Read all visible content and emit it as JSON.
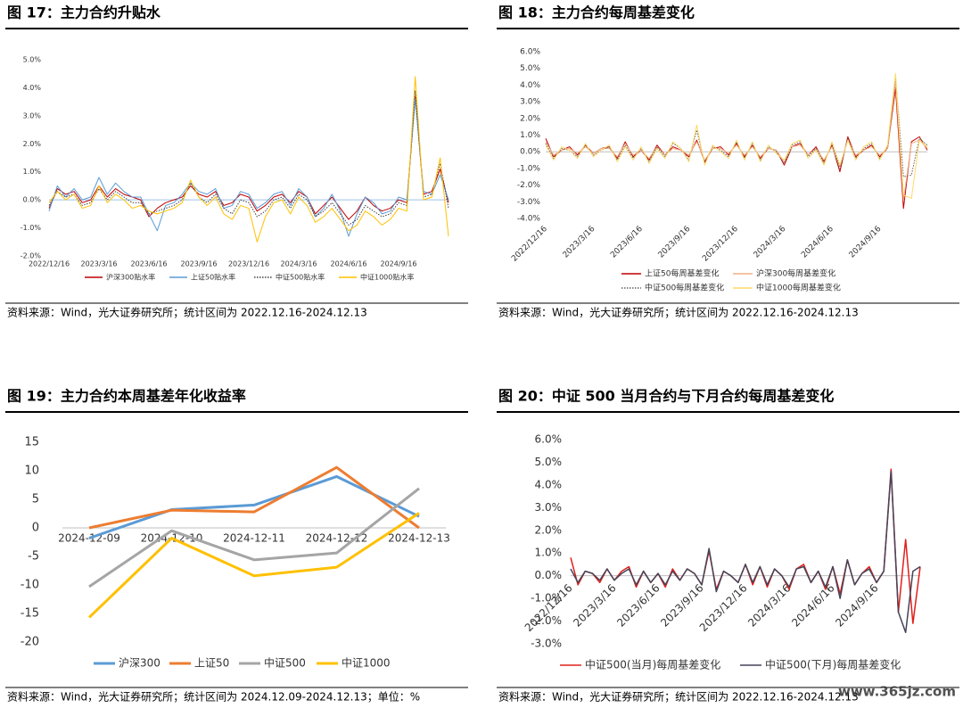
{
  "chart_data": [
    {
      "type": "line",
      "title": "图 17：主力合约升贴水",
      "source": "资料来源：Wind，光大证券研究所；统计区间为 2022.12.16-2024.12.13",
      "legend": "bottom",
      "grid": false,
      "categories": [
        "2022/12/16",
        null,
        null,
        null,
        null,
        null,
        "2023/3/16",
        null,
        null,
        null,
        null,
        null,
        "2023/6/16",
        null,
        null,
        null,
        null,
        null,
        "2023/9/16",
        null,
        null,
        null,
        null,
        null,
        "2023/12/16",
        null,
        null,
        null,
        null,
        null,
        "2024/3/16",
        null,
        null,
        null,
        null,
        null,
        "2024/6/16",
        null,
        null,
        null,
        null,
        null,
        "2024/9/16",
        null,
        null,
        null,
        null,
        null,
        null
      ],
      "ylim": [
        -2,
        5
      ],
      "yticks": [
        {
          "value": -2,
          "label": "-2.0%"
        },
        {
          "value": -1,
          "label": "-1.0%"
        },
        {
          "value": 0,
          "label": "0.0%"
        },
        {
          "value": 1,
          "label": "1.0%"
        },
        {
          "value": 2,
          "label": "2.0%"
        },
        {
          "value": 3,
          "label": "3.0%"
        },
        {
          "value": 4,
          "label": "4.0%"
        },
        {
          "value": 5,
          "label": "5.0%"
        }
      ],
      "series": [
        {
          "name": "沪深300贴水率",
          "color": "#c00000",
          "style": "solid",
          "values": [
            -0.3,
            0.4,
            0.2,
            0.3,
            -0.1,
            0,
            0.5,
            0.1,
            0.4,
            0.2,
            0.1,
            0,
            -0.6,
            -0.3,
            -0.1,
            0,
            0.1,
            0.5,
            0.2,
            0.1,
            0.3,
            -0.2,
            -0.1,
            0.2,
            0.1,
            -0.4,
            -0.2,
            0.1,
            0.2,
            -0.1,
            0.3,
            0.1,
            -0.5,
            -0.2,
            0.1,
            -0.3,
            -0.7,
            -0.4,
            0.1,
            -0.2,
            -0.4,
            -0.3,
            0,
            -0.1,
            3.7,
            0.2,
            0.3,
            1.1,
            -0.1
          ]
        },
        {
          "name": "上证50贴水率",
          "color": "#5b9bd5",
          "style": "solid",
          "values": [
            -0.4,
            0.5,
            0.1,
            0.4,
            0,
            0.1,
            0.8,
            0.2,
            0.6,
            0.3,
            0.1,
            0.1,
            -0.5,
            -1.1,
            -0.2,
            -0.1,
            0.2,
            0.6,
            0.3,
            0.2,
            0.4,
            -0.3,
            -0.2,
            0.3,
            0.2,
            -0.3,
            -0.1,
            0.2,
            0.3,
            -0.2,
            0.4,
            0.1,
            -0.6,
            -0.3,
            0.2,
            -0.4,
            -1.3,
            -0.5,
            0.1,
            -0.1,
            -0.5,
            -0.4,
            0.1,
            0,
            3.6,
            0.3,
            0.2,
            0.9,
            0
          ]
        },
        {
          "name": "中证500贴水率",
          "color": "#404040",
          "style": "dotted",
          "values": [
            -0.2,
            0.3,
            0.1,
            0.2,
            -0.2,
            -0.1,
            0.4,
            0,
            0.3,
            0.1,
            -0.1,
            -0.1,
            -0.5,
            -0.4,
            -0.3,
            -0.2,
            0,
            0.6,
            0.1,
            -0.1,
            0.2,
            -0.3,
            -0.5,
            0,
            -0.1,
            -0.6,
            -0.4,
            0,
            0.1,
            -0.3,
            0.2,
            0,
            -0.6,
            -0.4,
            -0.1,
            -0.5,
            -0.9,
            -0.7,
            -0.2,
            -0.4,
            -0.6,
            -0.5,
            -0.1,
            -0.2,
            3.9,
            0.1,
            0.2,
            1.3,
            -0.3
          ]
        },
        {
          "name": "中证1000贴水率",
          "color": "#ffc000",
          "style": "solid",
          "values": [
            -0.1,
            0.3,
            0,
            0.2,
            -0.3,
            -0.2,
            0.5,
            -0.1,
            0.2,
            0,
            -0.3,
            -0.2,
            -0.4,
            -0.5,
            -0.4,
            -0.3,
            -0.1,
            0.7,
            0.1,
            -0.2,
            0.1,
            -0.5,
            -0.7,
            -0.2,
            -0.3,
            -1.5,
            -0.6,
            -0.1,
            0,
            -0.5,
            0.1,
            -0.2,
            -0.8,
            -0.6,
            -0.3,
            -0.7,
            -1.1,
            -0.9,
            -0.4,
            -0.6,
            -0.9,
            -0.7,
            -0.3,
            -0.4,
            4.4,
            0,
            0.1,
            1.5,
            -1.3
          ]
        }
      ]
    },
    {
      "type": "line",
      "title": "图 18：主力合约每周基差变化",
      "source": "资料来源：Wind，光大证券研究所；统计区间为 2022.12.16-2024.12.13",
      "legend": "bottom",
      "grid": false,
      "categories": [
        "2022/12/16",
        null,
        null,
        null,
        null,
        null,
        "2023/3/16",
        null,
        null,
        null,
        null,
        null,
        "2023/6/16",
        null,
        null,
        null,
        null,
        null,
        "2023/9/16",
        null,
        null,
        null,
        null,
        null,
        "2023/12/16",
        null,
        null,
        null,
        null,
        null,
        "2024/3/16",
        null,
        null,
        null,
        null,
        null,
        "2024/6/16",
        null,
        null,
        null,
        null,
        null,
        "2024/9/16",
        null,
        null,
        null,
        null,
        null,
        null
      ],
      "ylim": [
        -4,
        6
      ],
      "yticks": [
        {
          "value": -4,
          "label": "-4.0%"
        },
        {
          "value": -3,
          "label": "-3.0%"
        },
        {
          "value": -2,
          "label": "-2.0%"
        },
        {
          "value": -1,
          "label": "-1.0%"
        },
        {
          "value": 0,
          "label": "0.0%"
        },
        {
          "value": 1,
          "label": "1.0%"
        },
        {
          "value": 2,
          "label": "2.0%"
        },
        {
          "value": 3,
          "label": "3.0%"
        },
        {
          "value": 4,
          "label": "4.0%"
        },
        {
          "value": 5,
          "label": "5.0%"
        },
        {
          "value": 6,
          "label": "6.0%"
        }
      ],
      "series": [
        {
          "name": "上证50每周基差变化",
          "color": "#c00000",
          "style": "solid",
          "values": [
            0.8,
            -0.3,
            0.1,
            0.3,
            -0.2,
            0.4,
            -0.1,
            0.2,
            0.3,
            -0.4,
            0.6,
            -0.3,
            0.1,
            -0.5,
            0.4,
            -0.2,
            0.3,
            0.1,
            -0.3,
            0.7,
            -0.6,
            0.2,
            0.3,
            -0.2,
            0.5,
            -0.3,
            0.4,
            -0.4,
            0.2,
            0.1,
            -0.8,
            0.3,
            0.5,
            -0.2,
            0.3,
            -0.6,
            0.4,
            -1.2,
            0.9,
            -0.3,
            0.1,
            0.4,
            -0.3,
            0.2,
            3.8,
            -3.4,
            0.6,
            0.9,
            0.1
          ]
        },
        {
          "name": "沪深300每周基差变化",
          "color": "#f4b183",
          "style": "solid",
          "values": [
            0.6,
            -0.2,
            0.1,
            0.2,
            -0.1,
            0.3,
            -0.1,
            0.2,
            0.2,
            -0.3,
            0.5,
            -0.2,
            0.1,
            -0.4,
            0.3,
            -0.2,
            0.2,
            0.1,
            -0.2,
            0.6,
            -0.5,
            0.2,
            0.2,
            -0.1,
            0.4,
            -0.2,
            0.3,
            -0.3,
            0.2,
            0.1,
            -0.6,
            0.3,
            0.4,
            -0.2,
            0.2,
            -0.5,
            0.3,
            -0.9,
            0.7,
            -0.2,
            0.1,
            0.3,
            -0.2,
            0.2,
            4.2,
            -2.9,
            0.5,
            0.7,
            0.2
          ]
        },
        {
          "name": "中证500每周基差变化",
          "color": "#606060",
          "style": "dotted",
          "values": [
            0.5,
            -0.4,
            0.2,
            0.1,
            -0.3,
            0.4,
            -0.2,
            0.1,
            0.3,
            -0.5,
            0.4,
            -0.4,
            0.2,
            -0.6,
            0.3,
            -0.3,
            0.5,
            0.2,
            -0.5,
            1.3,
            -0.7,
            0.3,
            0.1,
            -0.3,
            0.6,
            -0.4,
            0.5,
            -0.5,
            0.3,
            0,
            -0.7,
            0.4,
            0.6,
            -0.3,
            0.2,
            -0.7,
            0.5,
            -1,
            0.8,
            -0.4,
            0.2,
            0.5,
            -0.4,
            0.3,
            4.5,
            -1.5,
            -1.4,
            0.8,
            0.4
          ]
        },
        {
          "name": "中证1000每周基差变化",
          "color": "#ffd966",
          "style": "solid",
          "values": [
            0.4,
            -0.5,
            0.3,
            0.1,
            -0.4,
            0.5,
            -0.3,
            0.1,
            0.4,
            -0.6,
            0.3,
            -0.5,
            0.3,
            -0.7,
            0.2,
            -0.4,
            0.6,
            0.2,
            -0.6,
            1.6,
            -0.8,
            0.4,
            0,
            -0.4,
            0.7,
            -0.5,
            0.6,
            -0.6,
            0.4,
            -0.1,
            -0.5,
            0.5,
            0.7,
            -0.4,
            0.1,
            -0.8,
            0.6,
            -0.8,
            0.7,
            -0.5,
            0.3,
            0.6,
            -0.5,
            0.4,
            4.7,
            -2.6,
            -2.8,
            0.7,
            0.3
          ]
        }
      ]
    },
    {
      "type": "line",
      "title": "图 19：主力合约本周基差年化收益率",
      "source": "资料来源：Wind，光大证券研究所；统计区间为 2024.12.09-2024.12.13；单位：%",
      "legend": "bottom",
      "grid": false,
      "categories": [
        "2024-12-09",
        "2024-12-10",
        "2024-12-11",
        "2024-12-12",
        "2024-12-13"
      ],
      "ylim": [
        -20,
        15
      ],
      "yticks": [
        -20,
        -15,
        -10,
        -5,
        0,
        5,
        10,
        15
      ],
      "series": [
        {
          "name": "沪深300",
          "color": "#5b9bd5",
          "style": "solid",
          "values": [
            -1.8,
            3.2,
            4,
            9,
            2
          ]
        },
        {
          "name": "上证50",
          "color": "#ed7d31",
          "style": "solid",
          "values": [
            0,
            3.1,
            2.8,
            10.6,
            0
          ]
        },
        {
          "name": "中证500",
          "color": "#a5a5a5",
          "style": "solid",
          "values": [
            -10.3,
            -0.5,
            -5.6,
            -4.4,
            6.9
          ]
        },
        {
          "name": "中证1000",
          "color": "#ffc000",
          "style": "solid",
          "values": [
            -15.7,
            -1.8,
            -8.4,
            -6.9,
            2.6
          ]
        }
      ]
    },
    {
      "type": "line",
      "title": "图 20：中证 500 当月合约与下月合约每周基差变化",
      "source": "资料来源：Wind，光大证券研究所；统计区间为 2022.12.16-2024.12.13",
      "legend": "bottom",
      "grid": false,
      "categories": [
        "2022/12/16",
        null,
        null,
        null,
        null,
        null,
        "2023/3/16",
        null,
        null,
        null,
        null,
        null,
        "2023/6/16",
        null,
        null,
        null,
        null,
        null,
        "2023/9/16",
        null,
        null,
        null,
        null,
        null,
        "2023/12/16",
        null,
        null,
        null,
        null,
        null,
        "2024/3/16",
        null,
        null,
        null,
        null,
        null,
        "2024/6/16",
        null,
        null,
        null,
        null,
        null,
        "2024/9/16",
        null,
        null,
        null,
        null,
        null,
        null
      ],
      "ylim": [
        -3,
        6
      ],
      "yticks": [
        {
          "value": -3,
          "label": "-3.0%"
        },
        {
          "value": -2,
          "label": "-2.0%"
        },
        {
          "value": -1,
          "label": "-1.0%"
        },
        {
          "value": 0,
          "label": "0.0%"
        },
        {
          "value": 1,
          "label": "1.0%"
        },
        {
          "value": 2,
          "label": "2.0%"
        },
        {
          "value": 3,
          "label": "3.0%"
        },
        {
          "value": 4,
          "label": "4.0%"
        },
        {
          "value": 5,
          "label": "5.0%"
        },
        {
          "value": 6,
          "label": "6.0%"
        }
      ],
      "series": [
        {
          "name": "中证500(当月)每周基差变化",
          "color": "#e0201b",
          "style": "solid",
          "values": [
            0.8,
            -0.4,
            0.2,
            0.1,
            -0.3,
            0.3,
            -0.2,
            0.2,
            0.4,
            -0.5,
            0.2,
            -0.3,
            0.1,
            -0.5,
            0.3,
            -0.2,
            0.3,
            0.1,
            -0.4,
            1.1,
            -0.6,
            0.2,
            0,
            -0.3,
            0.5,
            -0.4,
            0.4,
            -0.5,
            0.3,
            0,
            -0.6,
            0.3,
            0.5,
            -0.3,
            0.2,
            -0.6,
            0.4,
            -0.8,
            0.7,
            -0.4,
            0.1,
            0.4,
            -0.3,
            0.2,
            4.7,
            -1.6,
            1.6,
            -2.1,
            0.4
          ]
        },
        {
          "name": "中证500(下月)每周基差变化",
          "color": "#44445a",
          "style": "solid",
          "values": [
            0.3,
            -0.3,
            0.2,
            0.1,
            -0.2,
            0.3,
            -0.2,
            0.1,
            0.3,
            -0.4,
            0.2,
            -0.3,
            0.1,
            -0.4,
            0.2,
            -0.2,
            0.3,
            0.1,
            -0.4,
            1.2,
            -0.7,
            0.2,
            0,
            -0.3,
            0.5,
            -0.3,
            0.4,
            -0.4,
            0.3,
            0,
            -0.5,
            0.3,
            0.4,
            -0.3,
            0.2,
            -0.5,
            0.4,
            -1,
            0.7,
            -0.4,
            0.1,
            0.3,
            -0.3,
            0.2,
            4.6,
            -1.6,
            -2.5,
            0.2,
            0.4
          ]
        }
      ]
    }
  ],
  "watermark": "www.365jz.com"
}
